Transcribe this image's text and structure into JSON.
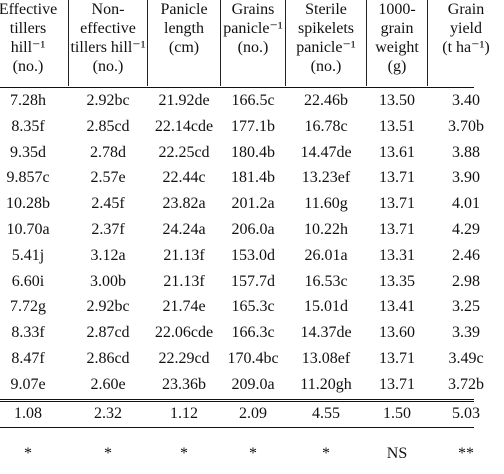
{
  "table": {
    "headers": [
      [
        "Effective",
        "tillers",
        "hill⁻¹",
        "(no.)"
      ],
      [
        "Non-",
        "effective",
        "tillers hill⁻¹",
        "(no.)"
      ],
      [
        "Panicle",
        "length",
        "(cm)"
      ],
      [
        "Grains",
        "panicle⁻¹",
        "(no.)"
      ],
      [
        "Sterile",
        "spikelets",
        "panicle⁻¹",
        "(no.)"
      ],
      [
        "1000-",
        "grain",
        "weight",
        "(g)"
      ],
      [
        "Grain",
        "yield",
        "(t ha⁻¹)"
      ]
    ],
    "rows": [
      [
        "7.28h",
        "2.92bc",
        "21.92de",
        "166.5c",
        "22.46b",
        "13.50",
        "3.40"
      ],
      [
        "8.35f",
        "2.85cd",
        "22.14cde",
        "177.1b",
        "16.78c",
        "13.51",
        "3.70b"
      ],
      [
        "9.35d",
        "2.78d",
        "22.25cd",
        "180.4b",
        "14.47de",
        "13.61",
        "3.88"
      ],
      [
        "9.857c",
        "2.57e",
        "22.44c",
        "181.4b",
        "13.23ef",
        "13.71",
        "3.90"
      ],
      [
        "10.28b",
        "2.45f",
        "23.82a",
        "201.2a",
        "11.60g",
        "13.71",
        "4.01"
      ],
      [
        "10.70a",
        "2.37f",
        "24.24a",
        "206.0a",
        "10.22h",
        "13.71",
        "4.29"
      ],
      [
        "5.41j",
        "3.12a",
        "21.13f",
        "153.0d",
        "26.01a",
        "13.31",
        "2.46"
      ],
      [
        "6.60i",
        "3.00b",
        "21.13f",
        "157.7d",
        "16.53c",
        "13.35",
        "2.98"
      ],
      [
        "7.72g",
        "2.92bc",
        "21.74e",
        "165.3c",
        "15.01d",
        "13.41",
        "3.25"
      ],
      [
        "8.33f",
        "2.87cd",
        "22.06cde",
        "166.3c",
        "14.37de",
        "13.60",
        "3.39"
      ],
      [
        "8.47f",
        "2.86cd",
        "22.29cd",
        "170.4bc",
        "13.08ef",
        "13.71",
        "3.49c"
      ],
      [
        "9.07e",
        "2.60e",
        "23.36b",
        "209.0a",
        "11.20gh",
        "13.71",
        "3.72b"
      ]
    ],
    "lsd": [
      "1.08",
      "2.32",
      "1.12",
      "2.09",
      "4.55",
      "1.50",
      "5.03"
    ],
    "significance": [
      "*",
      "*",
      "*",
      "*",
      "*",
      "NS",
      "**"
    ]
  }
}
